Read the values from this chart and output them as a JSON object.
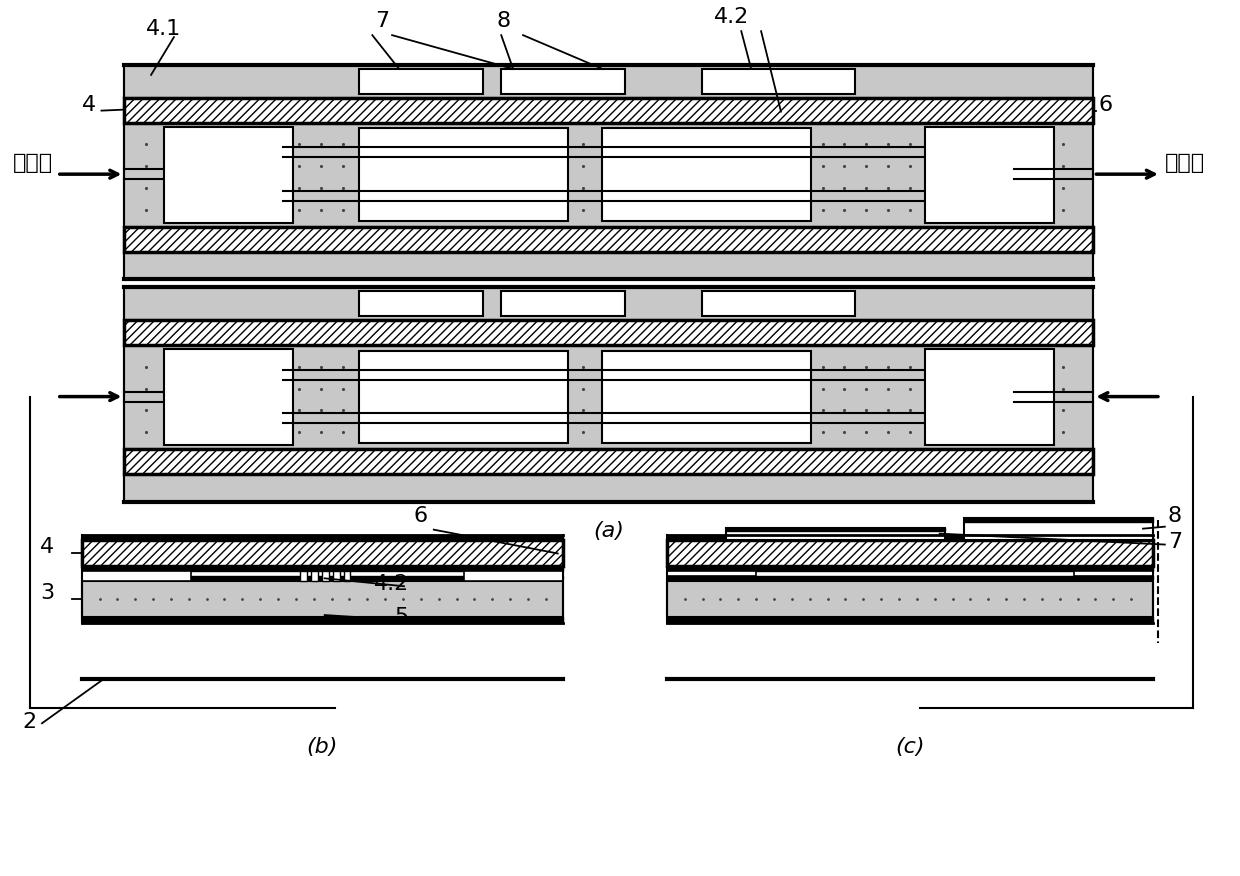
{
  "bg": "#ffffff",
  "lc": "#000000",
  "gray": "#c8c8c8",
  "white": "#ffffff",
  "black": "#000000",
  "label_41": "4.1",
  "label_4a": "4",
  "label_42": "4.2",
  "label_7": "7",
  "label_8": "8",
  "label_6a": "6",
  "label_4b": "4",
  "label_3": "3",
  "label_42b": "4.2",
  "label_5": "5",
  "label_6b": "6",
  "label_2": "2",
  "label_7b": "7",
  "label_8b": "8",
  "label_a": "(a)",
  "label_b": "(b)",
  "label_c": "(c)",
  "label_in": "入射光",
  "label_out": "调制光",
  "fs": 16
}
